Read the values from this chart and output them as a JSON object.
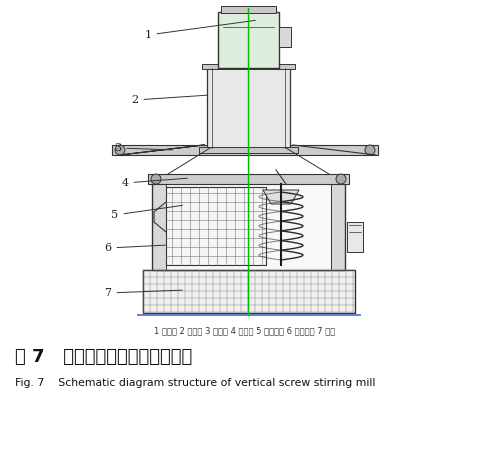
{
  "figure_number": "图 7",
  "chinese_title": "立式螺旋搅拌磨机结构简图",
  "fig_label": "Fig. 7",
  "english_title": "Schematic diagram structure of vertical screw stirring mill",
  "caption_small": "1 主电机 2 减速机 3 支架一 4 支架二 5 搅拌机构 6 筒体部件 7 地基",
  "bg_color": "#ffffff",
  "line_color": "#333333",
  "green_line": "#00bb00",
  "label_color": "#222222"
}
